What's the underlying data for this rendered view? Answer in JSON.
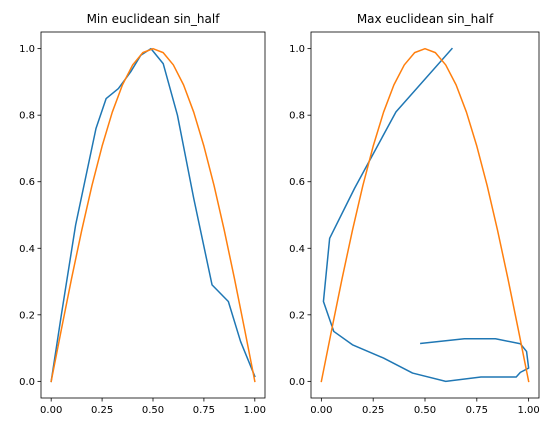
{
  "colors": {
    "series_1": "#1f77b4",
    "series_2": "#ff7f0e"
  },
  "chart_data": [
    {
      "type": "line",
      "title": "Min euclidean sin_half",
      "xlabel": "",
      "ylabel": "",
      "xlim": [
        -0.05,
        1.05
      ],
      "ylim": [
        -0.05,
        1.05
      ],
      "xticks": [
        0.0,
        0.25,
        0.5,
        0.75,
        1.0
      ],
      "xtick_labels": [
        "0.00",
        "0.25",
        "0.50",
        "0.75",
        "1.00"
      ],
      "yticks": [
        0.0,
        0.2,
        0.4,
        0.6,
        0.8,
        1.0
      ],
      "ytick_labels": [
        "0.0",
        "0.2",
        "0.4",
        "0.6",
        "0.8",
        "1.0"
      ],
      "grid": false,
      "series": [
        {
          "color": "#1f77b4",
          "x": [
            0.0,
            0.05,
            0.12,
            0.22,
            0.27,
            0.33,
            0.39,
            0.44,
            0.49,
            0.55,
            0.62,
            0.7,
            0.79,
            0.87,
            0.93,
            1.0
          ],
          "y": [
            0.0,
            0.2,
            0.47,
            0.76,
            0.85,
            0.88,
            0.93,
            0.98,
            1.0,
            0.955,
            0.8,
            0.55,
            0.29,
            0.24,
            0.12,
            0.015
          ]
        },
        {
          "color": "#ff7f0e",
          "x": [
            0.0,
            0.05,
            0.1,
            0.15,
            0.2,
            0.25,
            0.3,
            0.35,
            0.4,
            0.45,
            0.5,
            0.55,
            0.6,
            0.65,
            0.7,
            0.75,
            0.8,
            0.85,
            0.9,
            0.95,
            1.0
          ],
          "y": [
            0.0,
            0.156,
            0.309,
            0.454,
            0.588,
            0.707,
            0.809,
            0.891,
            0.951,
            0.988,
            1.0,
            0.988,
            0.951,
            0.891,
            0.809,
            0.707,
            0.588,
            0.454,
            0.309,
            0.156,
            0.0
          ]
        }
      ]
    },
    {
      "type": "line",
      "title": "Max euclidean sin_half",
      "xlabel": "",
      "ylabel": "",
      "xlim": [
        -0.05,
        1.05
      ],
      "ylim": [
        -0.05,
        1.05
      ],
      "xticks": [
        0.0,
        0.25,
        0.5,
        0.75,
        1.0
      ],
      "xtick_labels": [
        "0.00",
        "0.25",
        "0.50",
        "0.75",
        "1.00"
      ],
      "yticks": [
        0.0,
        0.2,
        0.4,
        0.6,
        0.8,
        1.0
      ],
      "ytick_labels": [
        "0.0",
        "0.2",
        "0.4",
        "0.6",
        "0.8",
        "1.0"
      ],
      "grid": false,
      "series": [
        {
          "color": "#1f77b4",
          "x": [
            0.63,
            0.36,
            0.16,
            0.04,
            0.01,
            0.06,
            0.15,
            0.3,
            0.44,
            0.6,
            0.77,
            0.94,
            0.96,
            1.0,
            0.99,
            0.96,
            0.84,
            0.69,
            0.48
          ],
          "y": [
            1.0,
            0.81,
            0.58,
            0.43,
            0.24,
            0.15,
            0.11,
            0.07,
            0.025,
            0.0,
            0.013,
            0.013,
            0.027,
            0.04,
            0.09,
            0.113,
            0.128,
            0.128,
            0.114
          ]
        },
        {
          "color": "#ff7f0e",
          "x": [
            0.0,
            0.05,
            0.1,
            0.15,
            0.2,
            0.25,
            0.3,
            0.35,
            0.4,
            0.45,
            0.5,
            0.55,
            0.6,
            0.65,
            0.7,
            0.75,
            0.8,
            0.85,
            0.9,
            0.95,
            1.0
          ],
          "y": [
            0.0,
            0.156,
            0.309,
            0.454,
            0.588,
            0.707,
            0.809,
            0.891,
            0.951,
            0.988,
            1.0,
            0.988,
            0.951,
            0.891,
            0.809,
            0.707,
            0.588,
            0.454,
            0.309,
            0.156,
            0.0
          ]
        }
      ]
    }
  ]
}
